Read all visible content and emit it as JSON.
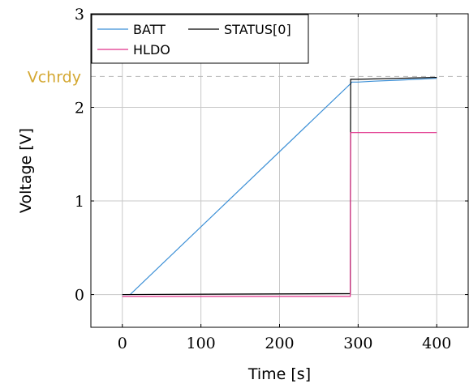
{
  "chart_data": {
    "type": "line",
    "title": "",
    "xlabel": "Time [s]",
    "ylabel": "Voltage [V]",
    "xlim": [
      -40,
      440
    ],
    "ylim": [
      -0.35,
      3.0
    ],
    "xticks": [
      0,
      100,
      200,
      300,
      400
    ],
    "yticks": [
      0,
      1,
      2,
      3
    ],
    "grid": true,
    "legend": {
      "position": "top-left",
      "columns": 2
    },
    "annotations": [
      {
        "text": "Vchrdy",
        "y": 2.33,
        "style": "dashed horizontal line",
        "color": "#d4a832"
      }
    ],
    "series": [
      {
        "name": "BATT",
        "color": "#3b8fd6",
        "x": [
          0,
          10,
          290,
          292,
          300,
          320,
          350,
          400
        ],
        "y": [
          0.0,
          0.0,
          2.25,
          2.27,
          2.27,
          2.28,
          2.29,
          2.31
        ]
      },
      {
        "name": "STATUS[0]",
        "color": "#000000",
        "x": [
          0,
          290,
          290.5,
          300,
          350,
          400
        ],
        "y": [
          0.0,
          0.01,
          2.3,
          2.3,
          2.31,
          2.32
        ]
      },
      {
        "name": "HLDO",
        "color": "#e0308a",
        "x": [
          0,
          290,
          290.5,
          300,
          350,
          400
        ],
        "y": [
          -0.02,
          -0.02,
          1.73,
          1.73,
          1.73,
          1.73
        ]
      }
    ]
  }
}
